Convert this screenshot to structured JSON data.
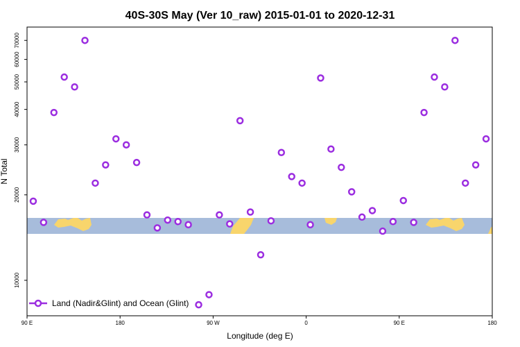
{
  "chart_data": {
    "type": "scatter",
    "title": "40S-30S May (Ver 10_raw)   2015-01-01 to 2020-12-31",
    "xlabel": "Longitude (deg E)",
    "ylabel": "N Total",
    "x_ticks": [
      {
        "value": 90,
        "label": "90 E"
      },
      {
        "value": 180,
        "label": "180"
      },
      {
        "value": 270,
        "label": "90 W"
      },
      {
        "value": 360,
        "label": "0"
      },
      {
        "value": 450,
        "label": "90 E"
      },
      {
        "value": 540,
        "label": "180"
      }
    ],
    "y_ticks": [
      10000,
      20000,
      30000,
      40000,
      50000,
      60000,
      70000
    ],
    "xlim": [
      90,
      540
    ],
    "ylim_log": [
      7500,
      78000
    ],
    "y_scale": "log",
    "legend_position": "bottom-left",
    "series": [
      {
        "name": "Land (Nadir&Glint) and Ocean (Glint)",
        "color": "#9b2de0",
        "x": [
          96,
          106,
          116,
          126,
          136,
          146,
          156,
          166,
          176,
          186,
          196,
          206,
          216,
          226,
          236,
          246,
          256,
          266,
          276,
          286,
          296,
          306,
          316,
          326,
          336,
          346,
          356,
          364,
          374,
          384,
          394,
          404,
          414,
          424,
          434,
          444,
          454,
          464,
          474,
          484,
          494,
          504,
          514,
          524,
          534
        ],
        "y": [
          19000,
          16000,
          39000,
          52000,
          48000,
          70000,
          22000,
          25500,
          31500,
          30000,
          26000,
          17000,
          15300,
          16300,
          16100,
          15700,
          8200,
          8900,
          17000,
          15800,
          36500,
          17400,
          12300,
          16200,
          28200,
          23200,
          22000,
          15700,
          51600,
          29000,
          25000,
          20500,
          16700,
          17600,
          14900,
          16100,
          19100,
          16000,
          39000,
          52000,
          48000,
          70000,
          22000,
          25500,
          31500
        ]
      }
    ]
  }
}
